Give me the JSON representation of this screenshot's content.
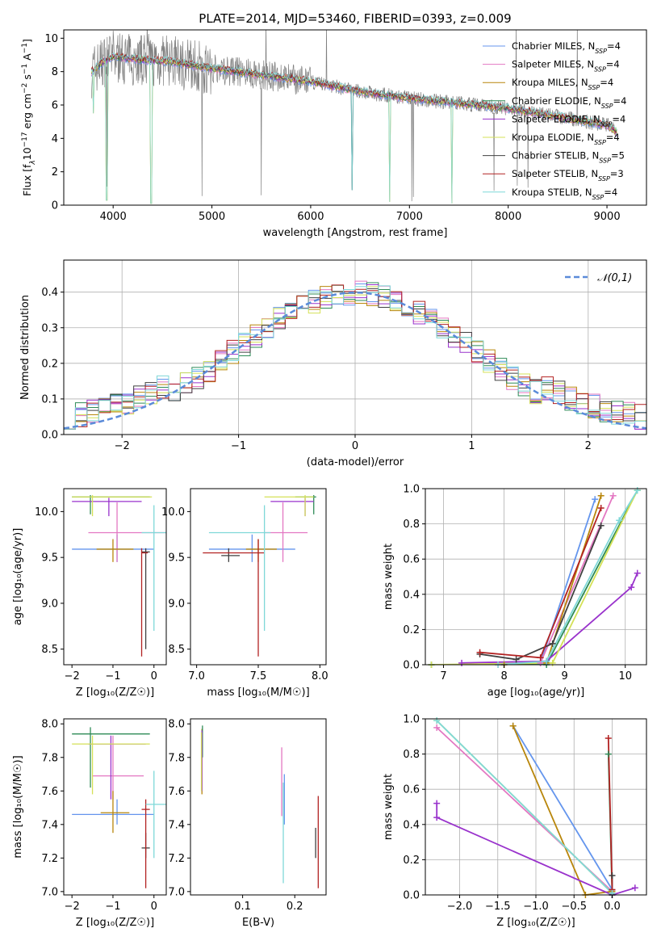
{
  "figure": {
    "title": "PLATE=2014, MJD=53460, FIBERID=0393, z=0.009"
  },
  "series_styles": [
    {
      "name": "Chabrier MILES, N_SSP=4",
      "legend": "Chabrier MILES, N",
      "sub": "SSP",
      "suffix": "=4",
      "color": "#6495ed"
    },
    {
      "name": "Salpeter MILES, N_SSP=4",
      "legend": "Salpeter MILES, N",
      "sub": "SSP",
      "suffix": "=4",
      "color": "#e377c2"
    },
    {
      "name": "Kroupa MILES, N_SSP=4",
      "legend": "Kroupa MILES, N",
      "sub": "SSP",
      "suffix": "=4",
      "color": "#b8860b"
    },
    {
      "name": "Chabrier ELODIE, N_SSP=4",
      "legend": "Chabrier ELODIE, N",
      "sub": "SSP",
      "suffix": "=4",
      "color": "#2e8b57"
    },
    {
      "name": "Salpeter ELODIE, N_SSP=4",
      "legend": "Salpeter ELODIE, N",
      "sub": "SSP",
      "suffix": "=4",
      "color": "#9932cc"
    },
    {
      "name": "Kroupa ELODIE, N_SSP=4",
      "legend": "Kroupa ELODIE, N",
      "sub": "SSP",
      "suffix": "=4",
      "color": "#d4e157"
    },
    {
      "name": "Chabrier STELIB, N_SSP=5",
      "legend": "Chabrier STELIB, N",
      "sub": "SSP",
      "suffix": "=5",
      "color": "#404040"
    },
    {
      "name": "Salpeter STELIB, N_SSP=3",
      "legend": "Salpeter STELIB, N",
      "sub": "SSP",
      "suffix": "=3",
      "color": "#b22222"
    },
    {
      "name": "Kroupa STELIB, N_SSP=4",
      "legend": "Kroupa STELIB, N",
      "sub": "SSP",
      "suffix": "=4",
      "color": "#7fd8d8"
    }
  ],
  "chart_data": [
    {
      "id": "spectrum",
      "type": "line",
      "title": "PLATE=2014, MJD=53460, FIBERID=0393, z=0.009",
      "xlabel": "wavelength [Angstrom, rest frame]",
      "ylabel_parts": {
        "a": "Flux [f",
        "sub": "λ",
        "b": "10",
        "sup1": "−17",
        "c": " erg cm",
        "sup2": "−2",
        "d": " s",
        "sup3": "−1",
        "e": " A",
        "sup4": "−1",
        "f": "]"
      },
      "xlim": [
        3500,
        9400
      ],
      "ylim": [
        0,
        10.5
      ],
      "xticks": [
        4000,
        5000,
        6000,
        7000,
        8000,
        9000
      ],
      "yticks": [
        0,
        2,
        4,
        6,
        8,
        10
      ],
      "data_color": "#808080",
      "continuum_points": [
        [
          3780,
          8.0
        ],
        [
          3900,
          8.6
        ],
        [
          4000,
          8.9
        ],
        [
          4300,
          8.7
        ],
        [
          4600,
          8.6
        ],
        [
          5000,
          8.2
        ],
        [
          5500,
          7.8
        ],
        [
          6000,
          7.4
        ],
        [
          6500,
          6.8
        ],
        [
          7000,
          6.4
        ],
        [
          7500,
          6.1
        ],
        [
          8000,
          5.8
        ],
        [
          8500,
          5.3
        ],
        [
          9000,
          4.8
        ],
        [
          9100,
          4.4
        ]
      ],
      "legend_loc": "upper right"
    },
    {
      "id": "residuals",
      "type": "histogram",
      "xlabel": "(data-model)/error",
      "ylabel": "Normed distribution",
      "xlim": [
        -2.5,
        2.5
      ],
      "ylim": [
        0,
        0.49
      ],
      "xticks": [
        -2,
        -1,
        0,
        1,
        2
      ],
      "yticks": [
        0.0,
        0.1,
        0.2,
        0.3,
        0.4
      ],
      "reference_curve": {
        "name": "𝒩(0,1)",
        "type": "gaussian",
        "mean": 0,
        "sigma": 1,
        "color": "#5b8bd9",
        "style": "dashed"
      },
      "legend_loc": "upper right"
    },
    {
      "id": "age_vs_Z",
      "type": "errorbar",
      "xlabel": "Z [log₁₀(Z/Z☉)]",
      "ylabel": "age  [log₁₀(age/yr)]",
      "xlim": [
        -2.2,
        0.3
      ],
      "ylim": [
        8.33,
        10.25
      ],
      "xticks": [
        -2,
        -1,
        0
      ],
      "yticks": [
        8.5,
        9.0,
        9.5,
        10.0
      ],
      "points": [
        {
          "s": 0,
          "x": -0.9,
          "y": 9.59,
          "xl": -2.0,
          "xh": 0.0,
          "yl": 9.45,
          "yh": 9.75
        },
        {
          "s": 1,
          "x": -0.9,
          "y": 9.77,
          "xl": -1.6,
          "xh": 0.3,
          "yl": 9.45,
          "yh": 10.1
        },
        {
          "s": 2,
          "x": -1.0,
          "y": 9.59,
          "xl": -1.4,
          "xh": -0.5,
          "yl": 9.45,
          "yh": 9.7
        },
        {
          "s": 3,
          "x": -1.55,
          "y": 10.16,
          "xl": -2.0,
          "xh": -0.1,
          "yl": 9.97,
          "yh": 10.18
        },
        {
          "s": 4,
          "x": -1.1,
          "y": 10.11,
          "xl": -2.0,
          "xh": -0.3,
          "yl": 9.95,
          "yh": 10.15
        },
        {
          "s": 5,
          "x": -1.5,
          "y": 10.16,
          "xl": -2.0,
          "xh": -0.05,
          "yl": 9.95,
          "yh": 10.18
        },
        {
          "s": 6,
          "x": -0.2,
          "y": 9.56,
          "xl": -0.3,
          "xh": -0.1,
          "yl": 8.5,
          "yh": 9.6
        },
        {
          "s": 7,
          "x": -0.3,
          "y": 9.55,
          "xl": -0.3,
          "xh": -0.15,
          "yl": 8.42,
          "yh": 9.6
        },
        {
          "s": 8,
          "x": 0.0,
          "y": 9.77,
          "xl": -0.3,
          "xh": 0.3,
          "yl": 8.7,
          "yh": 10.07
        }
      ]
    },
    {
      "id": "age_vs_mass",
      "type": "errorbar",
      "xlabel": "mass [log₁₀(M/M☉)]",
      "ylabel": "",
      "xlim": [
        6.95,
        8.05
      ],
      "ylim": [
        8.33,
        10.25
      ],
      "xticks": [
        7.0,
        7.5,
        8.0
      ],
      "yticks": [
        8.5,
        9.0,
        9.5,
        10.0
      ],
      "points": [
        {
          "s": 0,
          "x": 7.45,
          "y": 9.59,
          "xl": 7.1,
          "xh": 7.8,
          "yl": 9.45,
          "yh": 9.75
        },
        {
          "s": 1,
          "x": 7.7,
          "y": 9.77,
          "xl": 7.55,
          "xh": 7.9,
          "yl": 9.45,
          "yh": 10.1
        },
        {
          "s": 2,
          "x": 7.5,
          "y": 9.59,
          "xl": 7.4,
          "xh": 7.65,
          "yl": 9.45,
          "yh": 9.7
        },
        {
          "s": 3,
          "x": 7.95,
          "y": 10.16,
          "xl": 7.8,
          "xh": 7.97,
          "yl": 9.97,
          "yh": 10.18
        },
        {
          "s": 4,
          "x": 7.88,
          "y": 10.11,
          "xl": 7.6,
          "xh": 7.95,
          "yl": 9.95,
          "yh": 10.15
        },
        {
          "s": 5,
          "x": 7.88,
          "y": 10.16,
          "xl": 7.55,
          "xh": 7.95,
          "yl": 9.95,
          "yh": 10.18
        },
        {
          "s": 6,
          "x": 7.26,
          "y": 9.52,
          "xl": 7.2,
          "xh": 7.35,
          "yl": 9.45,
          "yh": 9.6
        },
        {
          "s": 7,
          "x": 7.5,
          "y": 9.55,
          "xl": 7.05,
          "xh": 7.55,
          "yl": 8.42,
          "yh": 9.7
        },
        {
          "s": 8,
          "x": 7.55,
          "y": 9.77,
          "xl": 7.1,
          "xh": 7.6,
          "yl": 8.7,
          "yh": 10.07
        }
      ]
    },
    {
      "id": "massweight_vs_age",
      "type": "line",
      "xlabel": "age  [log₁₀(age/yr)]",
      "ylabel": "mass weight",
      "xlim": [
        6.7,
        10.35
      ],
      "ylim": [
        0,
        1
      ],
      "xticks": [
        7,
        8,
        9,
        10
      ],
      "yticks": [
        0.0,
        0.2,
        0.4,
        0.6,
        0.8,
        1.0
      ],
      "series": [
        {
          "s": 0,
          "points": [
            [
              8.0,
              0.0
            ],
            [
              8.6,
              0.01
            ],
            [
              9.5,
              0.94
            ]
          ]
        },
        {
          "s": 1,
          "points": [
            [
              7.9,
              0.0
            ],
            [
              8.6,
              0.01
            ],
            [
              9.8,
              0.96
            ]
          ]
        },
        {
          "s": 2,
          "points": [
            [
              8.0,
              0.0
            ],
            [
              8.7,
              0.01
            ],
            [
              9.6,
              0.96
            ]
          ]
        },
        {
          "s": 3,
          "points": [
            [
              6.8,
              0.0
            ],
            [
              8.7,
              0.0
            ],
            [
              10.2,
              0.99
            ]
          ]
        },
        {
          "s": 4,
          "points": [
            [
              7.3,
              0.01
            ],
            [
              8.7,
              0.02
            ],
            [
              10.1,
              0.44
            ],
            [
              10.2,
              0.52
            ]
          ]
        },
        {
          "s": 5,
          "points": [
            [
              6.8,
              0.0
            ],
            [
              8.8,
              0.01
            ],
            [
              10.2,
              0.99
            ]
          ]
        },
        {
          "s": 6,
          "points": [
            [
              7.6,
              0.06
            ],
            [
              8.2,
              0.03
            ],
            [
              8.8,
              0.12
            ],
            [
              9.6,
              0.79
            ]
          ]
        },
        {
          "s": 7,
          "points": [
            [
              7.6,
              0.07
            ],
            [
              8.6,
              0.04
            ],
            [
              9.6,
              0.89
            ]
          ]
        },
        {
          "s": 8,
          "points": [
            [
              7.9,
              0.0
            ],
            [
              8.7,
              0.02
            ],
            [
              9.9,
              0.82
            ],
            [
              10.2,
              0.99
            ]
          ]
        }
      ]
    },
    {
      "id": "mass_vs_Z",
      "type": "errorbar",
      "xlabel": "Z [log₁₀(Z/Z☉)]",
      "ylabel": "mass [log₁₀(M/M☉)]",
      "xlim": [
        -2.2,
        0.3
      ],
      "ylim": [
        6.98,
        8.03
      ],
      "xticks": [
        -2,
        -1,
        0
      ],
      "yticks": [
        7.0,
        7.2,
        7.4,
        7.6,
        7.8,
        8.0
      ],
      "points": [
        {
          "s": 0,
          "x": -0.9,
          "y": 7.46,
          "xl": -2.0,
          "xh": 0.0,
          "yl": 7.4,
          "yh": 7.55
        },
        {
          "s": 1,
          "x": -1.0,
          "y": 7.69,
          "xl": -1.5,
          "xh": -0.25,
          "yl": 7.55,
          "yh": 7.93
        },
        {
          "s": 2,
          "x": -1.0,
          "y": 7.47,
          "xl": -1.3,
          "xh": -0.6,
          "yl": 7.35,
          "yh": 7.6
        },
        {
          "s": 3,
          "x": -1.55,
          "y": 7.94,
          "xl": -2.0,
          "xh": -0.1,
          "yl": 7.62,
          "yh": 7.98
        },
        {
          "s": 4,
          "x": -1.05,
          "y": 7.88,
          "xl": -1.6,
          "xh": -0.2,
          "yl": 7.55,
          "yh": 7.93
        },
        {
          "s": 5,
          "x": -1.5,
          "y": 7.88,
          "xl": -2.0,
          "xh": -0.1,
          "yl": 7.58,
          "yh": 7.93
        },
        {
          "s": 6,
          "x": -0.2,
          "y": 7.26,
          "xl": -0.3,
          "xh": -0.1,
          "yl": 7.2,
          "yh": 7.35
        },
        {
          "s": 7,
          "x": -0.2,
          "y": 7.49,
          "xl": -0.3,
          "xh": -0.1,
          "yl": 7.02,
          "yh": 7.55
        },
        {
          "s": 8,
          "x": 0.0,
          "y": 7.52,
          "xl": -0.2,
          "xh": 0.3,
          "yl": 7.2,
          "yh": 7.72
        }
      ]
    },
    {
      "id": "mass_vs_ebv",
      "type": "errorbar",
      "xlabel": "E(B-V)",
      "ylabel": "",
      "xlim": [
        0.0,
        0.26
      ],
      "ylim": [
        6.98,
        8.03
      ],
      "xticks": [
        0.1,
        0.2
      ],
      "yticks": [
        7.0,
        7.2,
        7.4,
        7.6,
        7.8,
        8.0
      ],
      "points": [
        {
          "s": 0,
          "x": 0.18,
          "y": 7.52,
          "yl": 7.4,
          "yh": 7.7
        },
        {
          "s": 1,
          "x": 0.175,
          "y": 7.65,
          "yl": 7.45,
          "yh": 7.86
        },
        {
          "s": 2,
          "x": 0.022,
          "y": 7.8,
          "yl": 7.58,
          "yh": 7.97
        },
        {
          "s": 3,
          "x": 0.023,
          "y": 7.92,
          "yl": 7.8,
          "yh": 7.99
        },
        {
          "s": 4,
          "x": 0.022,
          "y": 7.8,
          "yl": 7.6,
          "yh": 7.96
        },
        {
          "s": 5,
          "x": 0.021,
          "y": 7.8,
          "yl": 7.6,
          "yh": 7.95
        },
        {
          "s": 6,
          "x": 0.24,
          "y": 7.28,
          "yl": 7.2,
          "yh": 7.38
        },
        {
          "s": 7,
          "x": 0.245,
          "y": 7.3,
          "yl": 7.02,
          "yh": 7.57
        },
        {
          "s": 8,
          "x": 0.178,
          "y": 7.35,
          "yl": 7.05,
          "yh": 7.65
        }
      ]
    },
    {
      "id": "massweight_vs_Z",
      "type": "line",
      "xlabel": "Z [log₁₀(Z/Z☉)]",
      "ylabel": "mass weight",
      "xlim": [
        -2.45,
        0.45
      ],
      "ylim": [
        0,
        1
      ],
      "xticks": [
        -2.0,
        -1.5,
        -1.0,
        -0.5,
        0.0
      ],
      "yticks": [
        0.0,
        0.2,
        0.4,
        0.6,
        0.8,
        1.0
      ],
      "series": [
        {
          "s": 0,
          "points": [
            [
              -1.3,
              0.96
            ],
            [
              0.0,
              0.03
            ]
          ]
        },
        {
          "s": 1,
          "points": [
            [
              -2.3,
              0.95
            ],
            [
              0.0,
              0.02
            ]
          ]
        },
        {
          "s": 2,
          "points": [
            [
              -1.3,
              0.96
            ],
            [
              -0.35,
              0.0
            ],
            [
              0.0,
              0.02
            ]
          ]
        },
        {
          "s": 3,
          "points": [
            [
              -0.05,
              0.8
            ],
            [
              0.0,
              0.01
            ]
          ]
        },
        {
          "s": 4,
          "points": [
            [
              -2.3,
              0.52
            ],
            [
              -2.3,
              0.44
            ],
            [
              0.0,
              0.0
            ],
            [
              0.3,
              0.04
            ]
          ]
        },
        {
          "s": 5,
          "points": [
            [
              -2.3,
              0.99
            ],
            [
              0.0,
              0.01
            ]
          ]
        },
        {
          "s": 6,
          "points": [
            [
              0.0,
              0.11
            ],
            [
              0.0,
              0.0
            ]
          ]
        },
        {
          "s": 7,
          "points": [
            [
              -0.05,
              0.89
            ],
            [
              0.0,
              0.03
            ]
          ]
        },
        {
          "s": 8,
          "points": [
            [
              -2.3,
              0.99
            ],
            [
              0.0,
              0.01
            ]
          ]
        }
      ]
    }
  ]
}
